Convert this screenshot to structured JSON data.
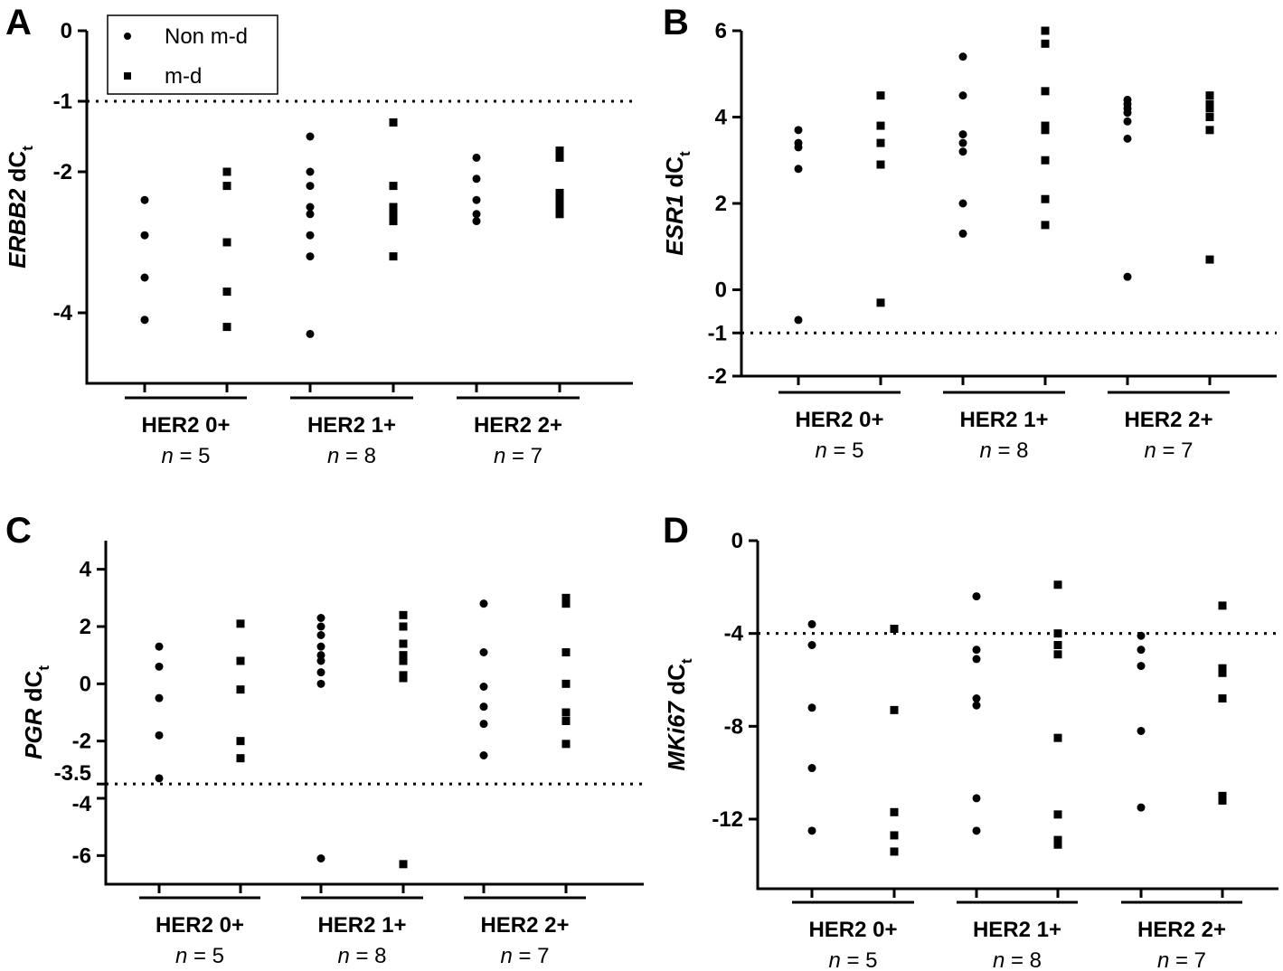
{
  "legend": {
    "items": [
      {
        "label": "Non m-d",
        "marker": "circle"
      },
      {
        "label": "m-d",
        "marker": "square"
      }
    ]
  },
  "colors": {
    "marker": "#000000",
    "axis": "#000000",
    "background": "#ffffff"
  },
  "chart_data": [
    {
      "panel": "A",
      "type": "scatter",
      "ylabel_gene": "ERBB2",
      "ylabel_rest": " dC",
      "ylabel_sub": "t",
      "ylim": [
        -5,
        0
      ],
      "yticks": [
        {
          "v": 0,
          "label": "0"
        },
        {
          "v": -1,
          "label": "-1"
        },
        {
          "v": -2,
          "label": "-2"
        },
        {
          "v": -4,
          "label": "-4"
        }
      ],
      "threshold": -1,
      "groups": [
        {
          "label": "HER2 0+",
          "n_prefix": "n",
          "n_value": "= 5"
        },
        {
          "label": "HER2 1+",
          "n_prefix": "n",
          "n_value": "= 8"
        },
        {
          "label": "HER2 2+",
          "n_prefix": "n",
          "n_value": "= 7"
        }
      ],
      "series": [
        {
          "name": "Non m-d",
          "marker": "circle",
          "values": [
            [
              -2.4,
              -2.9,
              -3.5,
              -4.1
            ],
            [
              -1.5,
              -2.0,
              -2.2,
              -2.5,
              -2.6,
              -2.9,
              -3.2,
              -4.3
            ],
            [
              -1.8,
              -2.1,
              -2.4,
              -2.6,
              -2.7
            ]
          ]
        },
        {
          "name": "m-d",
          "marker": "square",
          "values": [
            [
              -2.0,
              -2.2,
              -3.0,
              -3.7,
              -4.2
            ],
            [
              -1.3,
              -2.2,
              -2.5,
              -2.6,
              -2.7,
              -3.2
            ],
            [
              -1.7,
              -1.8,
              -2.3,
              -2.4,
              -2.5,
              -2.6
            ]
          ]
        }
      ]
    },
    {
      "panel": "B",
      "type": "scatter",
      "ylabel_gene": "ESR1",
      "ylabel_rest": " dC",
      "ylabel_sub": "t",
      "ylim": [
        -2,
        6
      ],
      "yticks": [
        {
          "v": 6,
          "label": "6"
        },
        {
          "v": 4,
          "label": "4"
        },
        {
          "v": 2,
          "label": "2"
        },
        {
          "v": 0,
          "label": "0"
        },
        {
          "v": -1,
          "label": "-1"
        },
        {
          "v": -2,
          "label": "-2"
        }
      ],
      "threshold": -1,
      "groups": [
        {
          "label": "HER2 0+",
          "n_prefix": "n",
          "n_value": "= 5"
        },
        {
          "label": "HER2 1+",
          "n_prefix": "n",
          "n_value": "= 8"
        },
        {
          "label": "HER2 2+",
          "n_prefix": "n",
          "n_value": "= 7"
        }
      ],
      "series": [
        {
          "name": "Non m-d",
          "marker": "circle",
          "values": [
            [
              3.7,
              3.4,
              3.3,
              2.8,
              -0.7
            ],
            [
              5.4,
              4.5,
              3.6,
              3.4,
              3.2,
              2.0,
              1.3
            ],
            [
              4.4,
              4.3,
              4.2,
              4.1,
              3.9,
              3.5,
              0.3
            ]
          ]
        },
        {
          "name": "m-d",
          "marker": "square",
          "values": [
            [
              4.5,
              3.8,
              3.4,
              2.9,
              -0.3
            ],
            [
              6.0,
              5.7,
              4.6,
              3.8,
              3.7,
              3.0,
              2.1,
              1.5
            ],
            [
              4.5,
              4.3,
              4.2,
              4.0,
              3.7,
              0.7
            ]
          ]
        }
      ]
    },
    {
      "panel": "C",
      "type": "scatter",
      "ylabel_gene": "PGR",
      "ylabel_rest": " dC",
      "ylabel_sub": "t",
      "ylim": [
        -7,
        5
      ],
      "yticks": [
        {
          "v": 4,
          "label": "4"
        },
        {
          "v": 2,
          "label": "2"
        },
        {
          "v": 0,
          "label": "0"
        },
        {
          "v": -2,
          "label": "-2"
        },
        {
          "v": -3.5,
          "label": "-3.5"
        },
        {
          "v": -4,
          "label": "-4"
        },
        {
          "v": -6,
          "label": "-6"
        }
      ],
      "threshold": -3.5,
      "groups": [
        {
          "label": "HER2 0+",
          "n_prefix": "n",
          "n_value": "= 5"
        },
        {
          "label": "HER2 1+",
          "n_prefix": "n",
          "n_value": "= 8"
        },
        {
          "label": "HER2 2+",
          "n_prefix": "n",
          "n_value": "= 7"
        }
      ],
      "series": [
        {
          "name": "Non m-d",
          "marker": "circle",
          "values": [
            [
              1.3,
              0.6,
              -0.5,
              -1.8,
              -3.3
            ],
            [
              2.3,
              2.0,
              1.7,
              1.3,
              1.0,
              0.8,
              0.4,
              0.0,
              -6.1
            ],
            [
              2.8,
              1.1,
              -0.1,
              -0.8,
              -1.4,
              -2.5
            ]
          ]
        },
        {
          "name": "m-d",
          "marker": "square",
          "values": [
            [
              2.1,
              0.8,
              -0.2,
              -2.0,
              -2.6
            ],
            [
              2.4,
              2.0,
              1.4,
              1.0,
              0.8,
              0.3,
              0.2,
              -6.3
            ],
            [
              3.0,
              2.8,
              1.1,
              0.0,
              -1.0,
              -1.3,
              -2.1
            ]
          ]
        }
      ]
    },
    {
      "panel": "D",
      "type": "scatter",
      "ylabel_gene": "MKi67",
      "ylabel_rest": " dC",
      "ylabel_sub": "t",
      "ylim": [
        -15,
        0
      ],
      "yticks": [
        {
          "v": 0,
          "label": "0"
        },
        {
          "v": -4,
          "label": "-4"
        },
        {
          "v": -8,
          "label": "-8"
        },
        {
          "v": -12,
          "label": "-12"
        }
      ],
      "threshold": -4,
      "groups": [
        {
          "label": "HER2 0+",
          "n_prefix": "n",
          "n_value": "= 5"
        },
        {
          "label": "HER2 1+",
          "n_prefix": "n",
          "n_value": "= 8"
        },
        {
          "label": "HER2 2+",
          "n_prefix": "n",
          "n_value": "= 7"
        }
      ],
      "series": [
        {
          "name": "Non m-d",
          "marker": "circle",
          "values": [
            [
              -3.6,
              -4.5,
              -7.2,
              -9.8,
              -12.5
            ],
            [
              -2.4,
              -4.7,
              -5.1,
              -6.8,
              -7.1,
              -11.1,
              -12.5
            ],
            [
              -4.1,
              -4.7,
              -5.4,
              -8.2,
              -11.5
            ]
          ]
        },
        {
          "name": "m-d",
          "marker": "square",
          "values": [
            [
              -3.8,
              -7.3,
              -11.7,
              -12.7,
              -13.4
            ],
            [
              -1.9,
              -4.0,
              -4.5,
              -4.9,
              -8.5,
              -11.8,
              -12.9,
              -13.1
            ],
            [
              -2.8,
              -5.5,
              -5.7,
              -6.8,
              -11.0,
              -11.2
            ]
          ]
        }
      ]
    }
  ]
}
